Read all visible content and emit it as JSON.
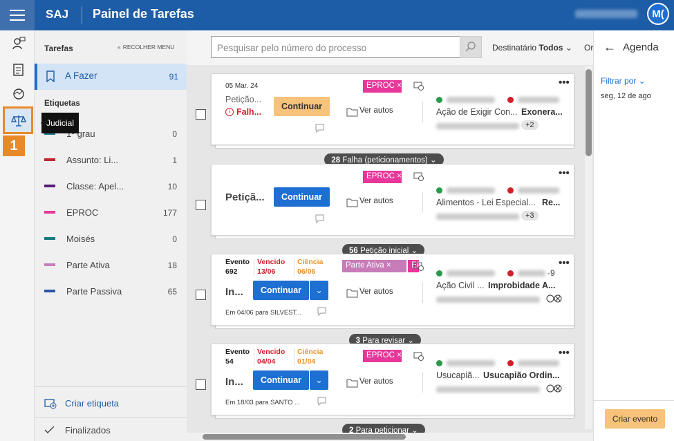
{
  "header": {
    "brand": "SAJ",
    "title": "Painel de Tarefas",
    "avatar": "M("
  },
  "rail": {
    "tooltip": "Judicial",
    "badge": "1"
  },
  "sidebar": {
    "section": "Tarefas",
    "collapse": "RECOLHER MENU",
    "active": {
      "label": "A Fazer",
      "count": 91
    },
    "tags_title": "Etiquetas",
    "tags": [
      {
        "label": "1º grau",
        "count": 0,
        "color": "#1f7a8c"
      },
      {
        "label": "Assunto: Li...",
        "count": 1,
        "color": "#c0282d"
      },
      {
        "label": "Classe: Apel...",
        "count": 10,
        "color": "#5a1a78"
      },
      {
        "label": "EPROC",
        "count": 177,
        "color": "#e8369a"
      },
      {
        "label": "Moisés",
        "count": 0,
        "color": "#157a80"
      },
      {
        "label": "Parte Ativa",
        "count": 18,
        "color": "#c77bb8"
      },
      {
        "label": "Parte Passiva",
        "count": 65,
        "color": "#2a54a6"
      }
    ],
    "create": "Criar etiqueta",
    "finished": "Finalizados"
  },
  "toolbar": {
    "search_placeholder": "Pesquisar pelo número do processo",
    "recipient_label": "Destinatário",
    "recipient_value": "Todos",
    "order": "Or"
  },
  "cards": [
    {
      "date": "05 Mar. 24",
      "title": "Petição...",
      "status": "Falh...",
      "button": "Continuar",
      "tags": [
        {
          "label": "EPROC",
          "color": "#e8369a"
        }
      ],
      "link": "Ver autos",
      "subject": "Ação de Exigir Con...",
      "subject_bold": "Exonera...",
      "extra": "+2",
      "group": {
        "count": 28,
        "label": "Falha (peticionamentos)"
      }
    },
    {
      "title": "Petiçã...",
      "button": "Continuar",
      "tags": [
        {
          "label": "EPROC",
          "color": "#e8369a"
        }
      ],
      "link": "Ver autos",
      "subject": "Alimentos - Lei Especial...",
      "subject_bold": "Re...",
      "extra": "+3",
      "group": {
        "count": 56,
        "label": "Petição inicial"
      }
    },
    {
      "event": {
        "label": "Evento",
        "value": "692"
      },
      "due": {
        "label": "Vencido",
        "value": "13/06"
      },
      "notice": {
        "label": "Ciência",
        "value": "06/06"
      },
      "title": "In...",
      "button": "Continuar",
      "tags": [
        {
          "label": "Parte Ativa",
          "color": "#c77bb8"
        },
        {
          "label": "EP",
          "color": "#e8369a"
        }
      ],
      "link": "Ver autos",
      "party_suffix": "-9",
      "subject": "Ação Civil ...",
      "subject_bold": "Improbidade A...",
      "note": "Em 04/06 para SILVEST...",
      "group": {
        "count": 3,
        "label": "Para revisar"
      }
    },
    {
      "event": {
        "label": "Evento",
        "value": "54"
      },
      "due": {
        "label": "Vencido",
        "value": "04/04"
      },
      "notice": {
        "label": "Ciência",
        "value": "01/04"
      },
      "title": "In...",
      "button": "Continuar",
      "tags": [
        {
          "label": "EPROC",
          "color": "#e8369a"
        }
      ],
      "link": "Ver autos",
      "subject": "Usucapiã...",
      "subject_bold": "Usucapião Ordin...",
      "note": "Em 18/03 para SANTO ...",
      "group": {
        "count": 2,
        "label": "Para peticionar"
      }
    }
  ],
  "agenda": {
    "title": "Agenda",
    "filter": "Filtrar por",
    "date": "seg, 12 de ago",
    "button": "Criar evento"
  }
}
